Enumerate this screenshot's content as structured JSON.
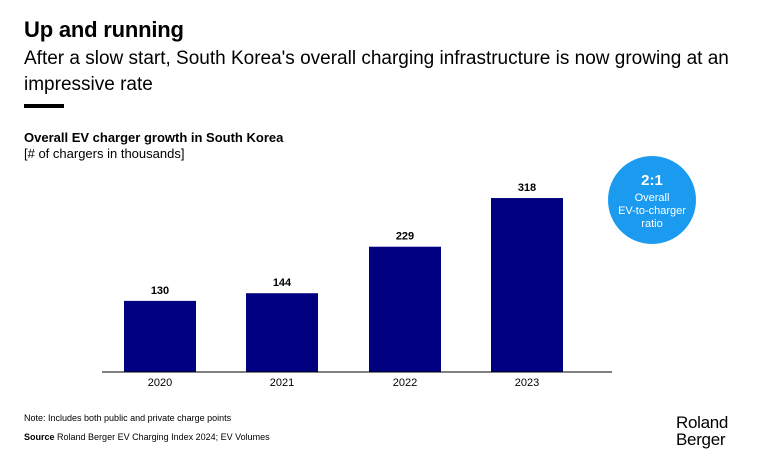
{
  "title": "Up and running",
  "subtitle": "After a slow start, South Korea's overall charging infrastructure is now growing at an impressive rate",
  "chart_data": {
    "type": "bar",
    "title": "Overall EV charger growth in South Korea",
    "ylabel": "[# of chargers in thousands]",
    "xlabel": "",
    "categories": [
      "2020",
      "2021",
      "2022",
      "2023"
    ],
    "values": [
      130,
      144,
      229,
      318
    ],
    "ylim": [
      0,
      340
    ],
    "grid": false,
    "bar_color": "#000080"
  },
  "badge": {
    "value": "2:1",
    "line1": "Overall",
    "line2": "EV-to-charger",
    "line3": "ratio",
    "color": "#1a9bf0"
  },
  "footer": {
    "note": "Note: Includes both public and private charge points",
    "source_label": "Source",
    "source_text": "Roland Berger EV Charging Index 2024; EV Volumes"
  },
  "logo": {
    "line1": "Roland",
    "line2": "Berger"
  }
}
